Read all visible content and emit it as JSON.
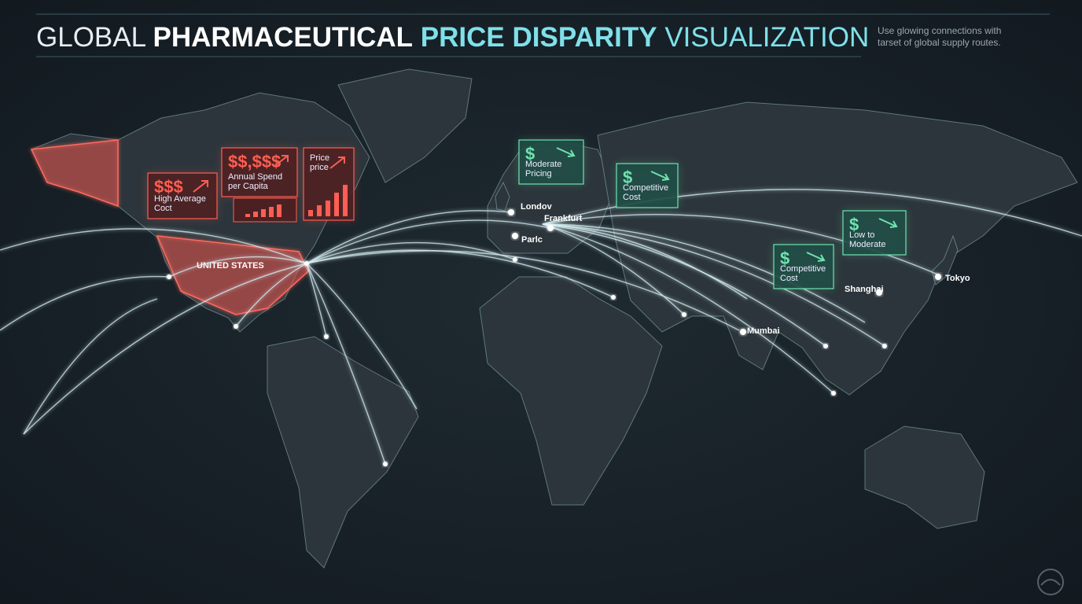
{
  "header": {
    "title": {
      "part1": "GLOBAL",
      "part2": "PHARMACEUTICAL",
      "part3": "PRICE DISPARITY",
      "part4": "VISUALIZATION"
    },
    "note": [
      "Use glowing connections with",
      "tarset of global supply routes."
    ]
  },
  "regions": [
    {
      "label": "UNITED STATES"
    }
  ],
  "cities": [
    {
      "label": "Londov"
    },
    {
      "label": "Frankfurt"
    },
    {
      "label": "Parlc"
    },
    {
      "label": "Mumbai"
    },
    {
      "label": "Shanghai"
    },
    {
      "label": "Tokyo"
    }
  ],
  "callouts": [
    {
      "symbol": "$$$",
      "text": [
        "High Average",
        "Coct"
      ]
    },
    {
      "symbol": "$$,$$$",
      "text": [
        "Annual Spend",
        "per Capita"
      ]
    },
    {
      "symbol": "",
      "text": [
        "Price",
        "price"
      ]
    },
    {
      "symbol": "$",
      "text": [
        "Moderate",
        "Pricing"
      ]
    },
    {
      "symbol": "$",
      "text": [
        "Competitive",
        "Cost"
      ]
    },
    {
      "symbol": "$",
      "text": [
        "Low to",
        "Moderate"
      ]
    },
    {
      "symbol": "$",
      "text": [
        "Competitive",
        "Cost"
      ]
    }
  ]
}
